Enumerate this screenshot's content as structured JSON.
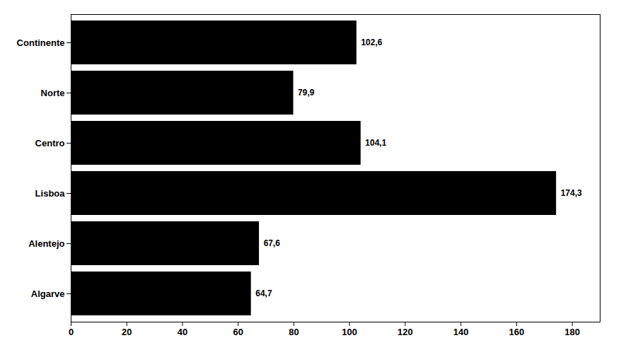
{
  "chart_data": {
    "type": "bar",
    "orientation": "horizontal",
    "categories": [
      "Continente",
      "Norte",
      "Centro",
      "Lisboa",
      "Alentejo",
      "Algarve"
    ],
    "values": [
      102.6,
      79.9,
      104.1,
      174.3,
      67.6,
      64.7
    ],
    "value_labels": [
      "102,6",
      "79,9",
      "104,1",
      "174,3",
      "67,6",
      "64,7"
    ],
    "data_labels": true,
    "xlim": [
      0,
      190
    ],
    "xticks": [
      0,
      20,
      40,
      60,
      80,
      100,
      120,
      140,
      160,
      180
    ],
    "grid": false
  }
}
